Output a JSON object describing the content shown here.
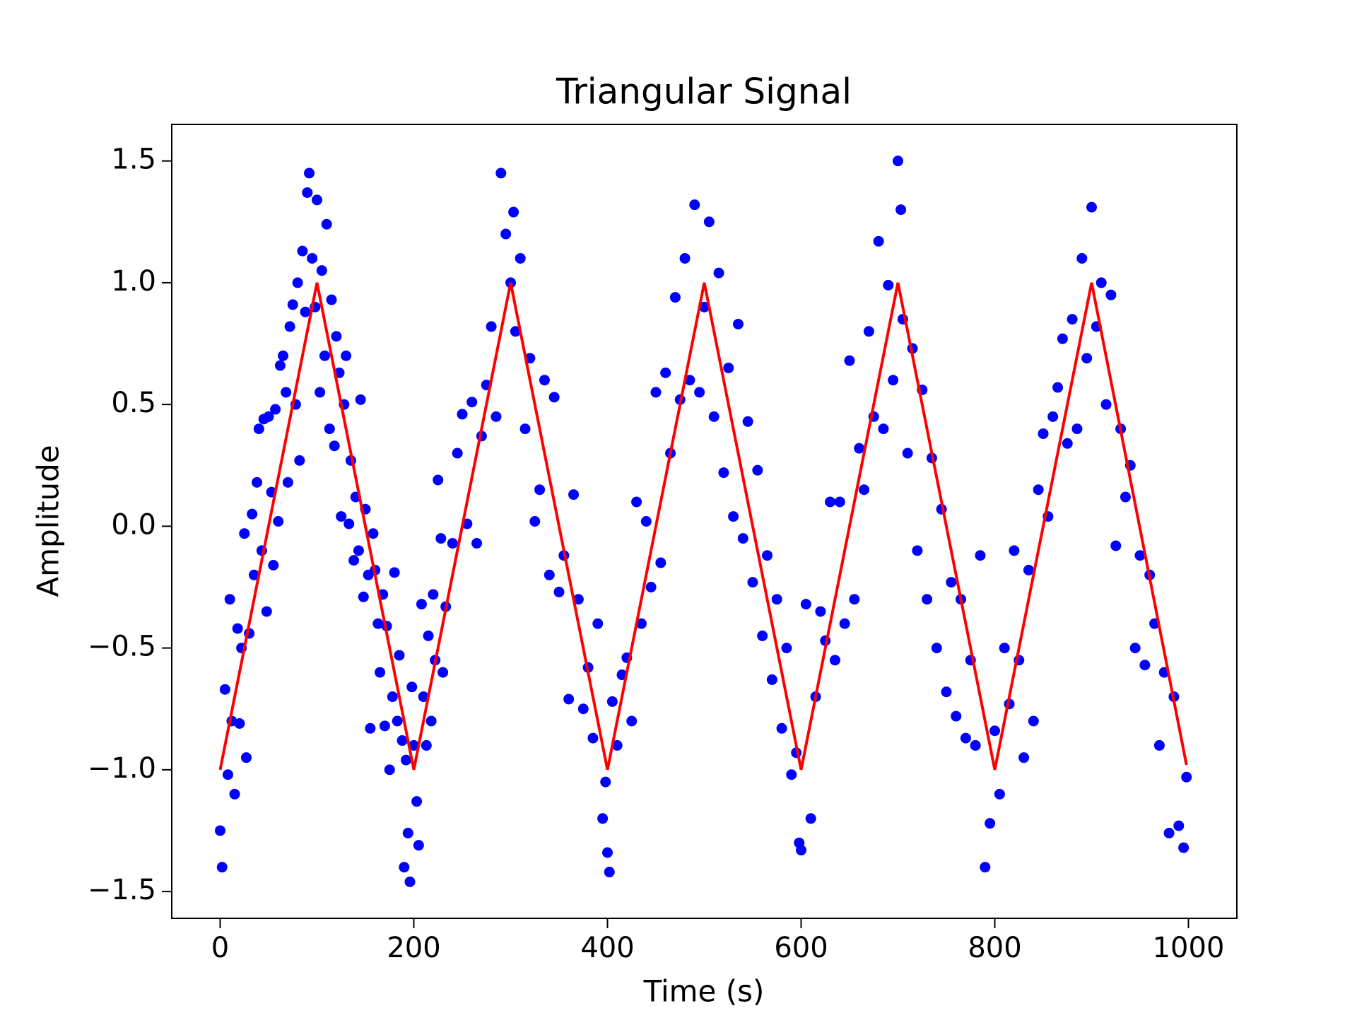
{
  "chart_data": {
    "type": "scatter",
    "title": "Triangular Signal",
    "xlabel": "Time (s)",
    "ylabel": "Amplitude",
    "xlim": [
      -50,
      1050
    ],
    "ylim": [
      -1.61,
      1.65
    ],
    "xticks": [
      0,
      200,
      400,
      600,
      800,
      1000
    ],
    "yticks": [
      {
        "value": -1.5,
        "label": "−1.5"
      },
      {
        "value": -1.0,
        "label": "−1.0"
      },
      {
        "value": -0.5,
        "label": "−0.5"
      },
      {
        "value": 0,
        "label": "0.0"
      },
      {
        "value": 0.5,
        "label": "0.5"
      },
      {
        "value": 1.0,
        "label": "1.0"
      },
      {
        "value": 1.5,
        "label": "1.5"
      }
    ],
    "series": [
      {
        "type": "scatter",
        "color": "#0000ff",
        "x": [
          0,
          2,
          5,
          8,
          10,
          12,
          15,
          18,
          20,
          22,
          25,
          27,
          30,
          33,
          35,
          38,
          40,
          43,
          45,
          48,
          50,
          53,
          55,
          57,
          60,
          62,
          65,
          68,
          70,
          72,
          75,
          78,
          80,
          82,
          85,
          88,
          90,
          92,
          95,
          98,
          100,
          103,
          105,
          108,
          110,
          113,
          115,
          118,
          120,
          123,
          125,
          128,
          130,
          133,
          135,
          138,
          140,
          143,
          145,
          148,
          150,
          153,
          155,
          158,
          160,
          163,
          165,
          168,
          170,
          172,
          175,
          178,
          180,
          183,
          185,
          188,
          190,
          192,
          194,
          196,
          198,
          200,
          203,
          205,
          208,
          210,
          213,
          215,
          218,
          220,
          222,
          225,
          228,
          230,
          233,
          240,
          245,
          250,
          255,
          260,
          265,
          270,
          275,
          280,
          285,
          290,
          295,
          300,
          303,
          305,
          310,
          315,
          320,
          325,
          330,
          335,
          340,
          345,
          350,
          355,
          360,
          365,
          370,
          375,
          380,
          385,
          390,
          395,
          398,
          400,
          402,
          405,
          410,
          415,
          420,
          425,
          430,
          435,
          440,
          445,
          450,
          455,
          460,
          465,
          470,
          475,
          480,
          485,
          490,
          495,
          500,
          505,
          510,
          515,
          520,
          525,
          530,
          535,
          540,
          545,
          550,
          555,
          560,
          565,
          570,
          575,
          580,
          585,
          590,
          595,
          598,
          600,
          605,
          610,
          615,
          620,
          625,
          630,
          635,
          640,
          645,
          650,
          655,
          660,
          665,
          670,
          675,
          680,
          685,
          690,
          695,
          700,
          703,
          705,
          710,
          715,
          720,
          725,
          730,
          735,
          740,
          745,
          750,
          755,
          760,
          765,
          770,
          775,
          780,
          785,
          790,
          795,
          800,
          805,
          810,
          815,
          820,
          825,
          830,
          835,
          840,
          845,
          850,
          855,
          860,
          865,
          870,
          875,
          880,
          885,
          890,
          895,
          900,
          905,
          910,
          915,
          920,
          925,
          930,
          935,
          940,
          945,
          950,
          955,
          960,
          965,
          970,
          975,
          980,
          985,
          990,
          995,
          998
        ],
        "values": [
          -1.25,
          -1.4,
          -0.67,
          -1.02,
          -0.3,
          -0.8,
          -1.1,
          -0.42,
          -0.81,
          -0.5,
          -0.03,
          -0.95,
          -0.44,
          0.05,
          -0.2,
          0.18,
          0.4,
          -0.1,
          0.44,
          -0.35,
          0.45,
          0.14,
          -0.16,
          0.48,
          0.02,
          0.66,
          0.7,
          0.55,
          0.18,
          0.82,
          0.91,
          0.5,
          1.0,
          0.27,
          1.13,
          0.88,
          1.37,
          1.45,
          1.1,
          0.9,
          1.34,
          0.55,
          1.05,
          0.7,
          1.24,
          0.4,
          0.93,
          0.33,
          0.78,
          0.63,
          0.04,
          0.5,
          0.7,
          0.01,
          0.27,
          -0.14,
          0.12,
          -0.1,
          0.52,
          -0.29,
          0.07,
          -0.2,
          -0.83,
          -0.03,
          -0.18,
          -0.4,
          -0.6,
          -0.28,
          -0.82,
          -0.41,
          -1.0,
          -0.7,
          -0.19,
          -0.8,
          -0.53,
          -0.88,
          -1.4,
          -0.96,
          -1.26,
          -1.46,
          -0.66,
          -0.9,
          -1.13,
          -1.31,
          -0.32,
          -0.7,
          -0.9,
          -0.45,
          -0.8,
          -0.28,
          -0.55,
          0.19,
          -0.05,
          -0.6,
          -0.33,
          -0.07,
          0.3,
          0.46,
          0.01,
          0.51,
          -0.07,
          0.37,
          0.58,
          0.82,
          0.45,
          1.45,
          1.2,
          1.0,
          1.29,
          0.8,
          1.1,
          0.4,
          0.69,
          0.02,
          0.15,
          0.6,
          -0.2,
          0.53,
          -0.27,
          -0.12,
          -0.71,
          0.13,
          -0.3,
          -0.75,
          -0.58,
          -0.87,
          -0.4,
          -1.2,
          -1.05,
          -1.34,
          -1.42,
          -0.72,
          -0.9,
          -0.61,
          -0.54,
          -0.8,
          0.1,
          -0.4,
          0.02,
          -0.25,
          0.55,
          -0.15,
          0.63,
          0.3,
          0.94,
          0.52,
          1.1,
          0.6,
          1.32,
          0.55,
          0.9,
          1.25,
          0.45,
          1.04,
          0.22,
          0.65,
          0.04,
          0.83,
          -0.05,
          0.43,
          -0.23,
          0.23,
          -0.45,
          -0.12,
          -0.63,
          -0.3,
          -0.83,
          -0.5,
          -1.02,
          -0.93,
          -1.3,
          -1.33,
          -0.32,
          -1.2,
          -0.7,
          -0.35,
          -0.47,
          0.1,
          -0.55,
          0.1,
          -0.4,
          0.68,
          -0.3,
          0.32,
          0.15,
          0.8,
          0.45,
          1.17,
          0.4,
          0.99,
          0.6,
          1.5,
          1.3,
          0.85,
          0.3,
          0.73,
          -0.1,
          0.56,
          -0.3,
          0.28,
          -0.5,
          0.07,
          -0.68,
          -0.23,
          -0.78,
          -0.3,
          -0.87,
          -0.55,
          -0.9,
          -0.12,
          -1.4,
          -1.22,
          -0.84,
          -1.1,
          -0.5,
          -0.73,
          -0.1,
          -0.55,
          -0.95,
          -0.18,
          -0.8,
          0.15,
          0.38,
          0.04,
          0.45,
          0.57,
          0.77,
          0.34,
          0.85,
          0.4,
          1.1,
          0.69,
          1.31,
          0.82,
          1.0,
          0.5,
          0.95,
          -0.08,
          0.4,
          0.12,
          0.25,
          -0.5,
          -0.12,
          -0.57,
          -0.2,
          -0.4,
          -0.9,
          -0.6,
          -1.26,
          -0.7,
          -1.23,
          -1.32,
          -1.03
        ]
      },
      {
        "type": "line",
        "color": "#ff0000",
        "x": [
          0,
          100,
          200,
          300,
          400,
          500,
          600,
          700,
          800,
          900,
          998
        ],
        "values": [
          -1,
          1,
          -1,
          1,
          -1,
          1,
          -1,
          1,
          -1,
          1,
          -0.98
        ]
      }
    ]
  }
}
